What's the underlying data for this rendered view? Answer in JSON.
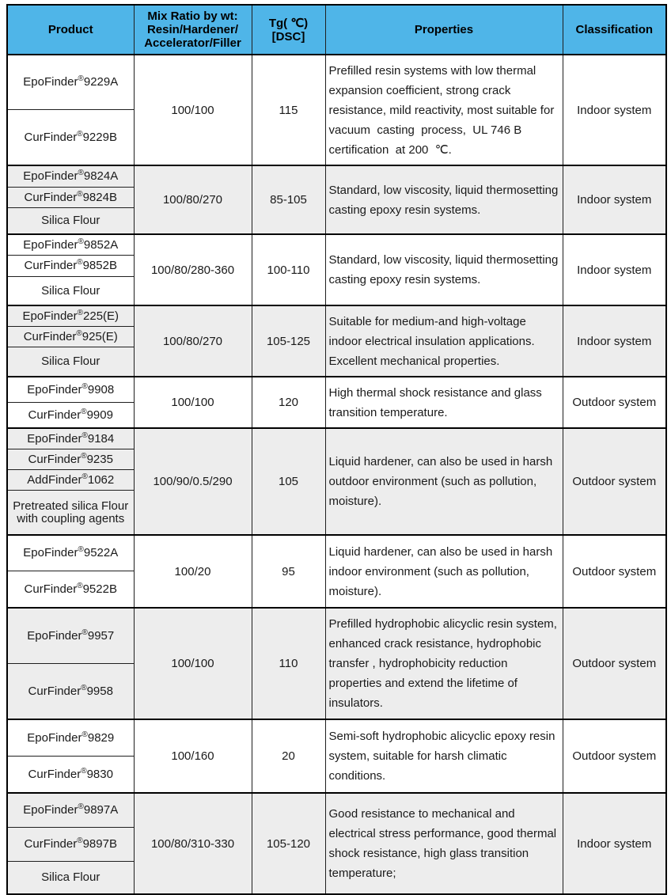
{
  "table": {
    "header": [
      {
        "key": "product",
        "lines": [
          "Product"
        ]
      },
      {
        "key": "mix-ratio",
        "lines": [
          "Mix Ratio by wt:",
          "Resin/Hardener/",
          "Accelerator/Filler"
        ]
      },
      {
        "key": "tg",
        "lines": [
          "Tg( ℃)",
          "[DSC]"
        ]
      },
      {
        "key": "properties",
        "lines": [
          "Properties"
        ]
      },
      {
        "key": "classification",
        "lines": [
          "Classification"
        ]
      }
    ],
    "groups": [
      {
        "products": [
          "EpoFinder®9229A",
          "CurFinder®9229B"
        ],
        "ratio": "100/100",
        "tg": "115",
        "properties": "Prefilled resin systems with low thermal expansion coefficient, strong crack resistance, mild reactivity, most suitable for vacuum  casting  process,  UL 746 B certification  at 200  ℃.",
        "classification": "Indoor system",
        "shade": false
      },
      {
        "products": [
          "EpoFinder®9824A",
          "CurFinder®9824B",
          "Silica Flour"
        ],
        "ratio": "100/80/270",
        "tg": "85-105",
        "properties": "Standard, low viscosity, liquid thermosetting casting epoxy resin systems.",
        "classification": "Indoor system",
        "shade": true
      },
      {
        "products": [
          "EpoFinder®9852A",
          "CurFinder®9852B",
          "Silica Flour"
        ],
        "ratio": "100/80/280-360",
        "tg": "100-110",
        "properties": "Standard, low viscosity, liquid thermosetting casting epoxy resin systems.",
        "classification": "Indoor system",
        "shade": false
      },
      {
        "products": [
          "EpoFinder®225(E)",
          "CurFinder®925(E)",
          "Silica Flour"
        ],
        "ratio": "100/80/270",
        "tg": "105-125",
        "properties": "Suitable for medium-and high-voltage indoor electrical insulation applications. Excellent mechanical properties.",
        "classification": "Indoor system",
        "shade": true
      },
      {
        "products": [
          "EpoFinder®9908",
          "CurFinder®9909"
        ],
        "ratio": "100/100",
        "tg": "120",
        "properties": "High thermal shock resistance and glass transition temperature.",
        "classification": "Outdoor system",
        "shade": false
      },
      {
        "products": [
          "EpoFinder®9184",
          "CurFinder®9235",
          "AddFinder®1062",
          "Pretreated silica Flour with coupling agents"
        ],
        "ratio": "100/90/0.5/290",
        "tg": "105",
        "properties": "Liquid hardener, can also be used in harsh outdoor environment (such as pollution, moisture).",
        "classification": "Outdoor system",
        "shade": true
      },
      {
        "products": [
          "EpoFinder®9522A",
          "CurFinder®9522B"
        ],
        "ratio": "100/20",
        "tg": "95",
        "properties": "Liquid hardener, can also be used in harsh indoor environment (such as pollution, moisture).",
        "classification": "Outdoor system",
        "shade": false
      },
      {
        "products": [
          "EpoFinder®9957",
          "CurFinder®9958"
        ],
        "ratio": "100/100",
        "tg": "110",
        "properties": "Prefilled hydrophobic alicyclic resin system, enhanced crack resistance, hydrophobic transfer , hydrophobicity reduction properties and extend the lifetime of insulators.",
        "classification": "Outdoor system",
        "shade": true
      },
      {
        "products": [
          "EpoFinder®9829",
          "CurFinder®9830"
        ],
        "ratio": "100/160",
        "tg": "20",
        "properties": "Semi-soft hydrophobic alicyclic epoxy resin system, suitable for harsh climatic conditions.",
        "classification": "Outdoor system",
        "shade": false
      },
      {
        "products": [
          "EpoFinder®9897A",
          "CurFinder®9897B",
          "Silica Flour"
        ],
        "ratio": "100/80/310-330",
        "tg": "105-120",
        "properties": "Good resistance to mechanical and electrical stress performance, good thermal shock resistance, high glass transition temperature;",
        "classification": "Indoor system",
        "shade": true
      }
    ]
  },
  "colors": {
    "header_bg": "#4fb5e8",
    "stripe_bg": "#ededed",
    "border": "#1f1f1f"
  }
}
